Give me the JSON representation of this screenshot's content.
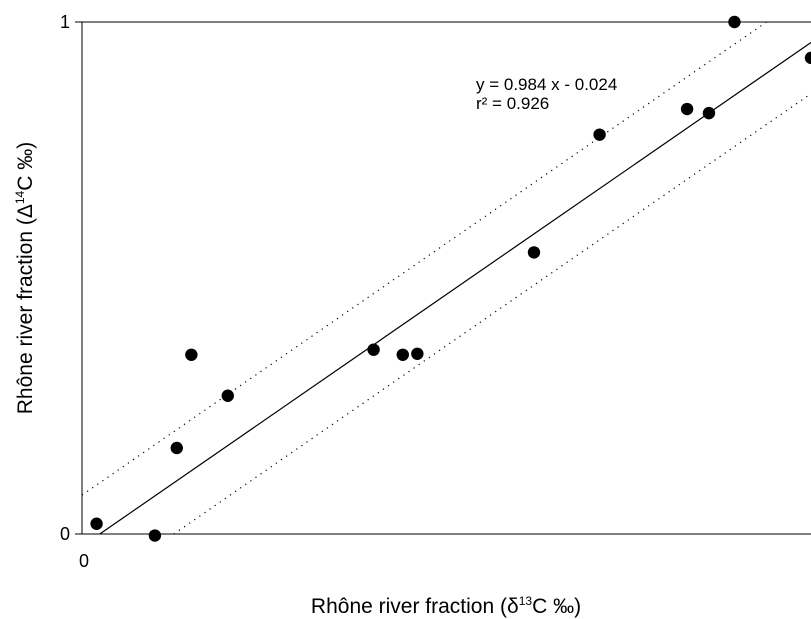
{
  "chart_data": {
    "type": "scatter",
    "title": "",
    "xlabel": {
      "prefix": "Rhône river fraction (",
      "symbol": "δ",
      "superscript": "13",
      "suffix": "C ‰)"
    },
    "ylabel": {
      "prefix": "Rhône river fraction (",
      "symbol": "Δ",
      "superscript": "14",
      "suffix": "C ‰)"
    },
    "xlim": [
      0,
      1
    ],
    "ylim": [
      0,
      1
    ],
    "x_ticks": [
      "0"
    ],
    "y_ticks": [
      "0",
      "1"
    ],
    "grid": false,
    "points": [
      {
        "x": 0.02,
        "y": 0.02
      },
      {
        "x": 0.1,
        "y": -0.003
      },
      {
        "x": 0.13,
        "y": 0.168
      },
      {
        "x": 0.15,
        "y": 0.35
      },
      {
        "x": 0.2,
        "y": 0.27
      },
      {
        "x": 0.4,
        "y": 0.36
      },
      {
        "x": 0.44,
        "y": 0.35
      },
      {
        "x": 0.46,
        "y": 0.352
      },
      {
        "x": 0.62,
        "y": 0.55
      },
      {
        "x": 0.71,
        "y": 0.78
      },
      {
        "x": 0.83,
        "y": 0.83
      },
      {
        "x": 0.86,
        "y": 0.822
      },
      {
        "x": 0.895,
        "y": 1.0
      },
      {
        "x": 1.0,
        "y": 0.93
      }
    ],
    "fit_line": {
      "slope": 0.984,
      "intercept": -0.024
    },
    "confidence_band_offset": 0.1,
    "annotations": [
      "y = 0.984 x - 0.024",
      "r² = 0.926"
    ],
    "colors": {
      "points": "#000000",
      "fit_line": "#000000",
      "band": "#000000",
      "axis": "#000000"
    }
  }
}
